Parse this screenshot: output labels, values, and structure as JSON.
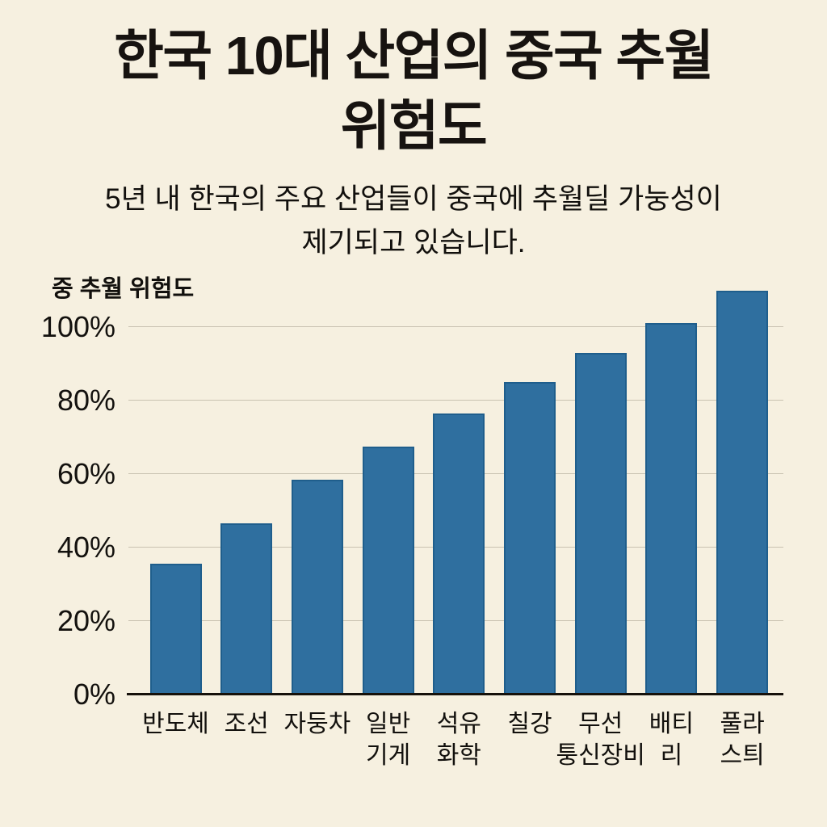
{
  "title": {
    "line1": "한국 10대 산업의 중국 추월",
    "line2": "위험도"
  },
  "subtitle": {
    "line1": "5년 내 한국의 주요 산업들이 중국에 추월딜 가눙성이",
    "line2": "제기되고 있습니다."
  },
  "chart_data": {
    "type": "bar",
    "title": "한국 10대 산업의 중국 추월 위험도",
    "axis_label": "중 추월 위험도",
    "unit": "%",
    "categories": [
      "반도체",
      "조선",
      "자둥차",
      "일반 기게",
      "석유 화학",
      "칠강",
      "무선 퉁신장비",
      "배티리",
      "풀라스틔"
    ],
    "category_label_lines": [
      [
        "반도체"
      ],
      [
        "조선"
      ],
      [
        "자둥차"
      ],
      [
        "일반",
        "기게"
      ],
      [
        "석유",
        "화학"
      ],
      [
        "칠강"
      ],
      [
        "무선",
        "퉁신장비"
      ],
      [
        "배티",
        "리"
      ],
      [
        "풀라",
        "스틔"
      ]
    ],
    "values": [
      35.5,
      46.5,
      58.5,
      67.5,
      76.5,
      85,
      93,
      101,
      110
    ],
    "y_tick_values": [
      0,
      20,
      40,
      60,
      80,
      100
    ],
    "y_tick_labels": [
      "0%",
      "20%",
      "40%",
      "60%",
      "80%",
      "100%"
    ],
    "ylim": [
      0,
      113
    ],
    "grid": true,
    "legend": false,
    "colors": {
      "background": "#f6f0e0",
      "bar_fill": "#2f6f9f",
      "bar_border": "#1f5e8c",
      "gridline": "#c9c2b1",
      "axis_line": "#16110b",
      "text": "#171310"
    }
  }
}
